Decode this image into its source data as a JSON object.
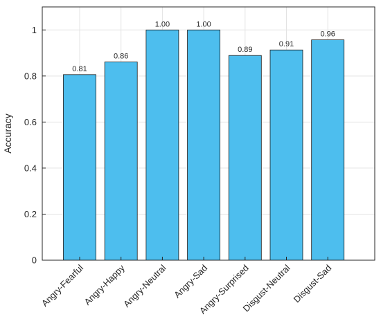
{
  "chart_data": {
    "type": "bar",
    "title": "",
    "xlabel": "",
    "ylabel": "Accuracy",
    "ylim": [
      0,
      1.1
    ],
    "yticks": [
      0,
      0.2,
      0.4,
      0.6,
      0.8,
      1
    ],
    "ytick_labels": [
      "0",
      "0.2",
      "0.4",
      "0.6",
      "0.8",
      "1"
    ],
    "grid": true,
    "categories": [
      "Angry-Fearful",
      "Angry-Happy",
      "Angry-Neutral",
      "Angry-Sad",
      "Angry-Surprised",
      "Disgust-Neutral",
      "Disgust-Sad"
    ],
    "values": [
      0.806,
      0.861,
      1.0,
      1.0,
      0.889,
      0.913,
      0.957
    ],
    "data_labels": [
      "0.81",
      "0.86",
      "1.00",
      "1.00",
      "0.89",
      "0.91",
      "0.96"
    ],
    "bar_color": "#4DBEEE",
    "bar_edge_color": "#1a1a1a"
  }
}
